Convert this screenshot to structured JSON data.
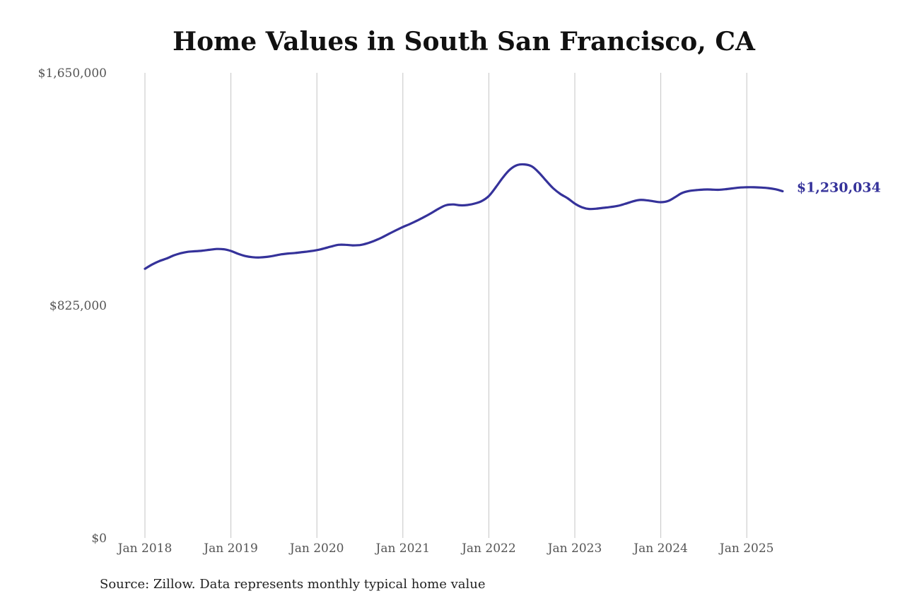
{
  "chart_data": {
    "type": "line",
    "title": "Home Values in South San Francisco, CA",
    "xlabel": "",
    "ylabel": "",
    "source": "Source: Zillow. Data represents monthly typical home value",
    "grid": "vertical",
    "ylim": [
      0,
      1650000
    ],
    "yticks": [
      0,
      825000,
      1650000
    ],
    "ytick_labels": [
      "$0",
      "$825,000",
      "$1,650,000"
    ],
    "xticks": [
      "2018-01",
      "2019-01",
      "2020-01",
      "2021-01",
      "2022-01",
      "2023-01",
      "2024-01",
      "2025-01"
    ],
    "xtick_labels": [
      "Jan 2018",
      "Jan 2019",
      "Jan 2020",
      "Jan 2021",
      "Jan 2022",
      "Jan 2023",
      "Jan 2024",
      "Jan 2025"
    ],
    "end_label": "$1,230,034",
    "color": "#35329a",
    "series": [
      {
        "name": "",
        "points": [
          [
            "2018-01",
            955000
          ],
          [
            "2018-02",
            970000
          ],
          [
            "2018-03",
            982000
          ],
          [
            "2018-04",
            991000
          ],
          [
            "2018-05",
            1002000
          ],
          [
            "2018-06",
            1010000
          ],
          [
            "2018-07",
            1015000
          ],
          [
            "2018-08",
            1017000
          ],
          [
            "2018-09",
            1019000
          ],
          [
            "2018-10",
            1022000
          ],
          [
            "2018-11",
            1025000
          ],
          [
            "2018-12",
            1024000
          ],
          [
            "2019-01",
            1018000
          ],
          [
            "2019-02",
            1008000
          ],
          [
            "2019-03",
            1000000
          ],
          [
            "2019-04",
            996000
          ],
          [
            "2019-05",
            995000
          ],
          [
            "2019-06",
            997000
          ],
          [
            "2019-07",
            1001000
          ],
          [
            "2019-08",
            1006000
          ],
          [
            "2019-09",
            1009000
          ],
          [
            "2019-10",
            1011000
          ],
          [
            "2019-11",
            1014000
          ],
          [
            "2019-12",
            1017000
          ],
          [
            "2020-01",
            1021000
          ],
          [
            "2020-02",
            1027000
          ],
          [
            "2020-03",
            1034000
          ],
          [
            "2020-04",
            1040000
          ],
          [
            "2020-05",
            1040000
          ],
          [
            "2020-06",
            1038000
          ],
          [
            "2020-07",
            1039000
          ],
          [
            "2020-08",
            1045000
          ],
          [
            "2020-09",
            1054000
          ],
          [
            "2020-10",
            1065000
          ],
          [
            "2020-11",
            1078000
          ],
          [
            "2020-12",
            1091000
          ],
          [
            "2021-01",
            1103000
          ],
          [
            "2021-02",
            1114000
          ],
          [
            "2021-03",
            1126000
          ],
          [
            "2021-04",
            1139000
          ],
          [
            "2021-05",
            1153000
          ],
          [
            "2021-06",
            1168000
          ],
          [
            "2021-07",
            1180000
          ],
          [
            "2021-08",
            1183000
          ],
          [
            "2021-09",
            1180000
          ],
          [
            "2021-10",
            1181000
          ],
          [
            "2021-11",
            1186000
          ],
          [
            "2021-12",
            1195000
          ],
          [
            "2022-01",
            1213000
          ],
          [
            "2022-02",
            1245000
          ],
          [
            "2022-03",
            1280000
          ],
          [
            "2022-04",
            1308000
          ],
          [
            "2022-05",
            1323000
          ],
          [
            "2022-06",
            1325000
          ],
          [
            "2022-07",
            1318000
          ],
          [
            "2022-08",
            1296000
          ],
          [
            "2022-09",
            1267000
          ],
          [
            "2022-10",
            1240000
          ],
          [
            "2022-11",
            1220000
          ],
          [
            "2022-12",
            1205000
          ],
          [
            "2023-01",
            1186000
          ],
          [
            "2023-02",
            1173000
          ],
          [
            "2023-03",
            1167000
          ],
          [
            "2023-04",
            1168000
          ],
          [
            "2023-05",
            1171000
          ],
          [
            "2023-06",
            1174000
          ],
          [
            "2023-07",
            1178000
          ],
          [
            "2023-08",
            1185000
          ],
          [
            "2023-09",
            1193000
          ],
          [
            "2023-10",
            1199000
          ],
          [
            "2023-11",
            1198000
          ],
          [
            "2023-12",
            1194000
          ],
          [
            "2024-01",
            1191000
          ],
          [
            "2024-02",
            1195000
          ],
          [
            "2024-03",
            1209000
          ],
          [
            "2024-04",
            1224000
          ],
          [
            "2024-05",
            1231000
          ],
          [
            "2024-06",
            1234000
          ],
          [
            "2024-07",
            1236000
          ],
          [
            "2024-08",
            1236000
          ],
          [
            "2024-09",
            1235000
          ],
          [
            "2024-10",
            1237000
          ],
          [
            "2024-11",
            1240000
          ],
          [
            "2024-12",
            1243000
          ],
          [
            "2025-01",
            1244000
          ],
          [
            "2025-02",
            1244000
          ],
          [
            "2025-03",
            1243000
          ],
          [
            "2025-04",
            1241000
          ],
          [
            "2025-05",
            1237000
          ],
          [
            "2025-06",
            1230034
          ]
        ]
      }
    ]
  }
}
